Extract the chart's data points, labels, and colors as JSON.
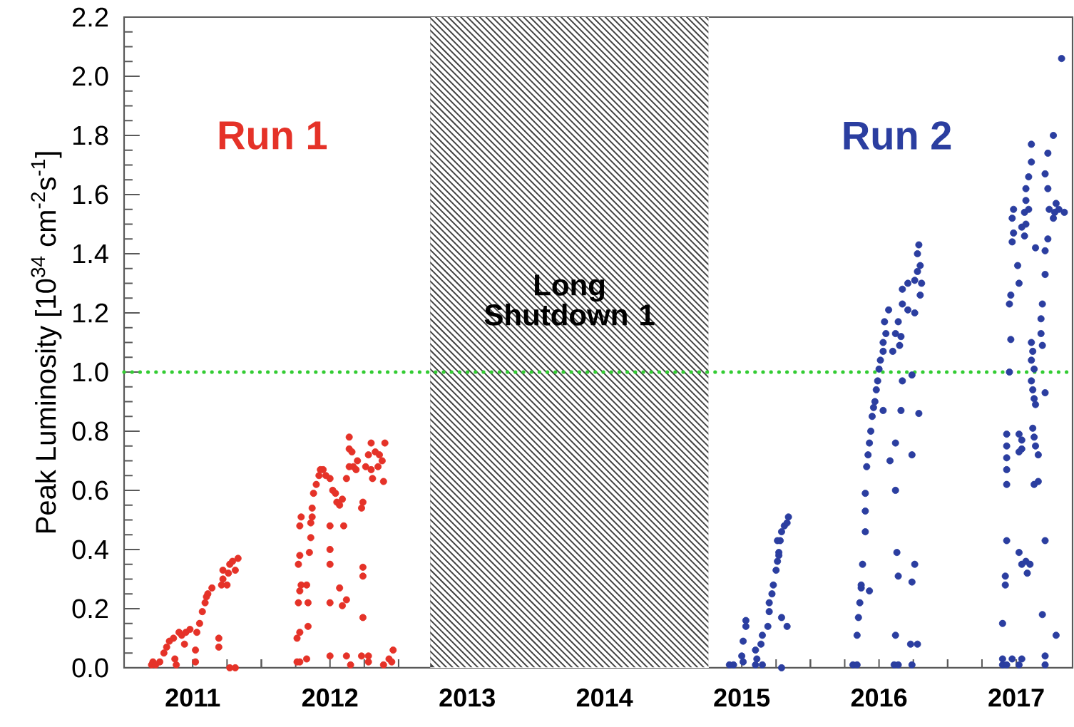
{
  "chart_data": {
    "type": "scatter",
    "ylabel": "Peak Luminosity [10$^{34}$ cm$^{-2}$s$^{-1}$]",
    "series": [
      {
        "name": "Run 1",
        "color": "#e53228",
        "x": [
          2011.2,
          2011.21,
          2011.23,
          2011.26,
          2011.29,
          2011.31,
          2011.33,
          2011.36,
          2011.37,
          2011.38,
          2011.4,
          2011.42,
          2011.44,
          2011.45,
          2011.48,
          2011.52,
          2011.52,
          2011.53,
          2011.55,
          2011.57,
          2011.59,
          2011.6,
          2011.61,
          2011.64,
          2011.69,
          2011.69,
          2011.71,
          2011.72,
          2011.72,
          2011.75,
          2011.76,
          2011.77,
          2011.79,
          2011.81,
          2011.83,
          2011.77,
          2011.81,
          2012.26,
          2012.28,
          2012.26,
          2012.28,
          2012.27,
          2012.28,
          2012.29,
          2012.27,
          2012.28,
          2012.28,
          2012.29,
          2012.33,
          2012.34,
          2012.34,
          2012.33,
          2012.35,
          2012.36,
          2012.36,
          2012.37,
          2012.37,
          2012.38,
          2012.4,
          2012.42,
          2012.43,
          2012.45,
          2012.47,
          2012.5,
          2012.52,
          2012.54,
          2012.55,
          2012.57,
          2012.59,
          2012.5,
          2012.6,
          2012.5,
          2012.5,
          2012.5,
          2012.5,
          2012.57,
          2012.59,
          2012.62,
          2012.62,
          2012.65,
          2012.62,
          2012.64,
          2012.64,
          2012.64,
          2012.66,
          2012.67,
          2012.69,
          2012.7,
          2012.73,
          2012.74,
          2012.74,
          2012.74,
          2012.74,
          2012.73,
          2012.78,
          2012.76,
          2012.78,
          2012.8,
          2012.8,
          2012.83,
          2012.85,
          2012.86,
          2012.88,
          2012.9,
          2012.89,
          2012.81,
          2012.89,
          2012.93,
          2012.96,
          2012.95,
          2012.78
        ],
        "values": [
          0.01,
          0.02,
          0.01,
          0.02,
          0.05,
          0.07,
          0.09,
          0.1,
          0.03,
          0.01,
          0.12,
          0.11,
          0.08,
          0.12,
          0.13,
          0.02,
          0.06,
          0.12,
          0.15,
          0.19,
          0.22,
          0.24,
          0.25,
          0.27,
          0.07,
          0.1,
          0.28,
          0.3,
          0.33,
          0.28,
          0.32,
          0.35,
          0.36,
          0.33,
          0.37,
          0.0,
          0.0,
          0.02,
          0.02,
          0.1,
          0.12,
          0.22,
          0.26,
          0.28,
          0.35,
          0.38,
          0.48,
          0.51,
          0.28,
          0.22,
          0.14,
          0.03,
          0.39,
          0.44,
          0.49,
          0.51,
          0.54,
          0.59,
          0.62,
          0.65,
          0.67,
          0.67,
          0.65,
          0.64,
          0.6,
          0.59,
          0.56,
          0.55,
          0.57,
          0.48,
          0.48,
          0.4,
          0.35,
          0.22,
          0.04,
          0.27,
          0.21,
          0.23,
          0.04,
          0.01,
          0.64,
          0.68,
          0.74,
          0.78,
          0.73,
          0.68,
          0.67,
          0.7,
          0.54,
          0.56,
          0.34,
          0.31,
          0.17,
          0.04,
          0.04,
          0.68,
          0.72,
          0.67,
          0.76,
          0.73,
          0.68,
          0.72,
          0.7,
          0.76,
          0.63,
          0.64,
          0.01,
          0.03,
          0.06,
          0.02,
          0.02
        ]
      },
      {
        "name": "Run 2",
        "color": "#2b3ea0",
        "x": [
          2015.41,
          2015.44,
          2015.5,
          2015.51,
          2015.53,
          2015.53,
          2015.51,
          2015.6,
          2015.61,
          2015.6,
          2015.64,
          2015.65,
          2015.65,
          2015.69,
          2015.7,
          2015.7,
          2015.72,
          2015.73,
          2015.75,
          2015.76,
          2015.77,
          2015.78,
          2015.79,
          2015.81,
          2015.83,
          2015.84,
          2015.79,
          2015.83,
          2015.79,
          2015.76,
          2015.77,
          2016.31,
          2016.34,
          2016.34,
          2016.35,
          2016.36,
          2016.37,
          2016.38,
          2016.37,
          2016.4,
          2016.4,
          2016.4,
          2016.43,
          2016.41,
          2016.42,
          2016.43,
          2016.44,
          2016.45,
          2016.46,
          2016.47,
          2016.48,
          2016.49,
          2016.5,
          2016.51,
          2016.53,
          2016.53,
          2016.55,
          2016.54,
          2016.57,
          2016.53,
          2016.58,
          2016.62,
          2016.62,
          2016.63,
          2016.64,
          2016.62,
          2016.61,
          2016.64,
          2016.6,
          2016.62,
          2016.64,
          2016.65,
          2016.66,
          2016.67,
          2016.67,
          2016.67,
          2016.66,
          2016.71,
          2016.71,
          2016.74,
          2016.74,
          2016.74,
          2016.76,
          2016.73,
          2016.78,
          2016.74,
          2016.76,
          2016.78,
          2016.78,
          2016.79,
          2016.8,
          2016.81,
          2016.8,
          2016.76,
          2016.79,
          2017.4,
          2017.4,
          2017.43,
          2017.47,
          2017.52,
          2017.54,
          2017.4,
          2017.42,
          2017.42,
          2017.43,
          2017.43,
          2017.43,
          2017.43,
          2017.43,
          2017.43,
          2017.45,
          2017.46,
          2017.46,
          2017.45,
          2017.52,
          2017.51,
          2017.47,
          2017.48,
          2017.47,
          2017.48,
          2017.52,
          2017.54,
          2017.54,
          2017.52,
          2017.54,
          2017.57,
          2017.6,
          2017.58,
          2017.52,
          2017.54,
          2017.56,
          2017.57,
          2017.59,
          2017.57,
          2017.59,
          2017.56,
          2017.57,
          2017.61,
          2017.61,
          2017.64,
          2017.61,
          2017.62,
          2017.61,
          2017.63,
          2017.61,
          2017.62,
          2017.63,
          2017.64,
          2017.62,
          2017.63,
          2017.64,
          2017.66,
          2017.63,
          2017.66,
          2017.68,
          2017.68,
          2017.69,
          2017.69,
          2017.69,
          2017.71,
          2017.71,
          2017.71,
          2017.71,
          2017.71,
          2017.71,
          2017.73,
          2017.73,
          2017.71,
          2017.73,
          2017.77,
          2017.74,
          2017.78,
          2017.81,
          2017.79,
          2017.85,
          2017.77,
          2017.79,
          2017.83
        ],
        "values": [
          0.01,
          0.01,
          0.04,
          0.09,
          0.14,
          0.16,
          0.02,
          0.01,
          0.03,
          0.06,
          0.08,
          0.11,
          0.01,
          0.14,
          0.19,
          0.22,
          0.25,
          0.28,
          0.33,
          0.36,
          0.39,
          0.43,
          0.46,
          0.48,
          0.49,
          0.51,
          0.17,
          0.14,
          0.0,
          0.43,
          0.38,
          0.01,
          0.01,
          0.11,
          0.17,
          0.22,
          0.27,
          0.35,
          0.28,
          0.46,
          0.53,
          0.59,
          0.26,
          0.68,
          0.72,
          0.76,
          0.8,
          0.85,
          0.88,
          0.9,
          0.94,
          0.97,
          1.01,
          1.04,
          1.07,
          1.1,
          1.13,
          1.17,
          1.21,
          0.87,
          0.7,
          0.76,
          0.6,
          0.39,
          0.31,
          0.11,
          0.01,
          0.01,
          1.07,
          1.13,
          1.17,
          1.09,
          1.12,
          1.23,
          1.28,
          0.97,
          0.87,
          1.3,
          1.21,
          0.72,
          0.99,
          0.29,
          0.35,
          0.08,
          0.08,
          0.01,
          1.31,
          1.34,
          1.4,
          1.43,
          1.36,
          1.3,
          1.26,
          1.2,
          0.86,
          0.01,
          0.03,
          0.01,
          0.03,
          0.01,
          0.03,
          0.15,
          0.31,
          0.28,
          0.43,
          0.62,
          0.67,
          0.71,
          0.75,
          0.79,
          1.0,
          1.11,
          1.26,
          1.23,
          1.3,
          1.36,
          1.44,
          1.47,
          1.52,
          1.55,
          0.79,
          0.77,
          0.74,
          0.73,
          0.35,
          0.36,
          0.35,
          0.32,
          0.39,
          1.49,
          1.54,
          1.62,
          1.66,
          1.58,
          1.55,
          1.46,
          1.5,
          1.77,
          1.71,
          1.42,
          1.1,
          1.07,
          1.04,
          1.01,
          0.97,
          0.94,
          0.91,
          0.89,
          0.81,
          0.78,
          0.75,
          0.72,
          0.62,
          0.63,
          1.18,
          1.13,
          1.09,
          1.23,
          0.18,
          0.04,
          0.01,
          0.43,
          0.93,
          1.33,
          1.41,
          1.45,
          1.62,
          1.67,
          1.74,
          1.8,
          1.55,
          1.54,
          1.55,
          1.57,
          1.54,
          1.52,
          0.11,
          2.06
        ]
      }
    ],
    "xlim": [
      2011,
      2017.91
    ],
    "ylim": [
      0,
      2.2
    ],
    "xticks": [
      {
        "value": 2011.5,
        "label": "2011"
      },
      {
        "value": 2012,
        "label": null
      },
      {
        "value": 2012.5,
        "label": "2012"
      },
      {
        "value": 2013,
        "label": null
      },
      {
        "value": 2013.5,
        "label": "2013"
      },
      {
        "value": 2014,
        "label": null
      },
      {
        "value": 2014.5,
        "label": "2014"
      },
      {
        "value": 2015,
        "label": null
      },
      {
        "value": 2015.5,
        "label": "2015"
      },
      {
        "value": 2016,
        "label": null
      },
      {
        "value": 2016.5,
        "label": "2016"
      },
      {
        "value": 2017,
        "label": null
      },
      {
        "value": 2017.5,
        "label": "2017"
      }
    ],
    "yticks": [
      {
        "value": 0,
        "label": "0.0"
      },
      0.2,
      0.4,
      0.6,
      0.8,
      {
        "value": 1,
        "label": "1.0"
      },
      1.2,
      1.4,
      1.6,
      1.8,
      {
        "value": 2,
        "label": "2.0"
      },
      2.2
    ],
    "ref_lines": [
      {
        "axis": "y",
        "value": 1,
        "color": "#33cc33",
        "line_style": "dotted"
      }
    ],
    "bands": [
      {
        "axis": "x",
        "from": 2013.23,
        "to": 2015.26,
        "label": "Long Shutdown 1",
        "color": "#444444"
      }
    ],
    "marker": "circle"
  }
}
